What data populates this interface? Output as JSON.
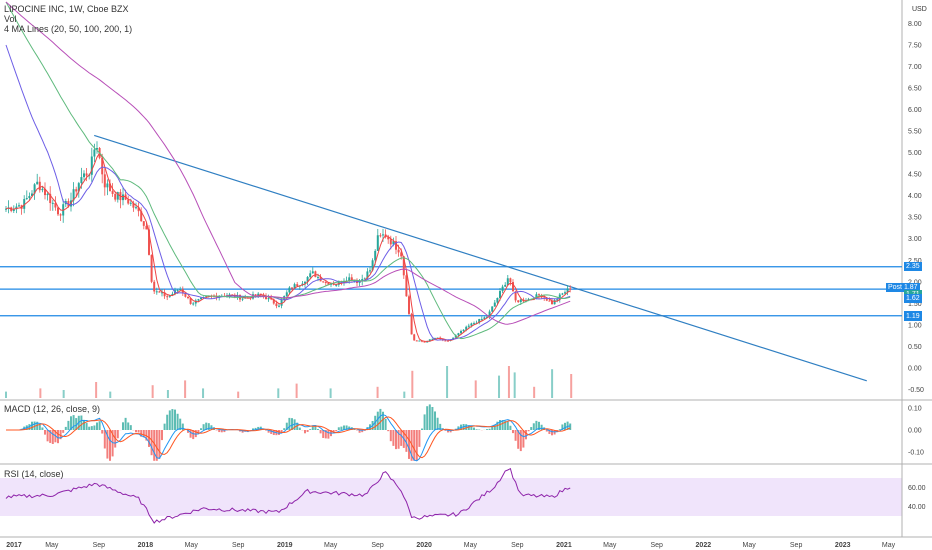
{
  "header": {
    "title": "LIPOCINE INC, 1W, Cboe BZX",
    "vol_label": "Vol",
    "ma_label": "4 MA Lines (20, 50, 100, 200, 1)",
    "macd_label": "MACD (12, 26, close, 9)",
    "rsi_label": "RSI (14, close)"
  },
  "currency": "USD",
  "colors": {
    "up": "#26a69a",
    "down": "#ef5350",
    "trend": "#2f7fc2",
    "hline": "#1e88e5",
    "ma20": "#ef4444",
    "ma50": "#6d5ee6",
    "ma100": "#5fba7d",
    "ma200": "#b84fb8",
    "rsi_band": "#f0e4fb",
    "rsi_line": "#8e24aa",
    "macd_line": "#2196f3",
    "signal_line": "#ff5722"
  },
  "price_axis": [
    "8.00",
    "7.50",
    "7.00",
    "6.50",
    "6.00",
    "5.50",
    "5.00",
    "4.50",
    "4.00",
    "3.50",
    "3.00",
    "2.50",
    "2.00",
    "1.50",
    "1.00",
    "0.50",
    "0.00",
    "-0.50"
  ],
  "macd_axis": [
    "0.10",
    "0.00",
    "-0.10"
  ],
  "rsi_axis": [
    "60.00",
    "40.00"
  ],
  "price_tags": [
    {
      "text": "2.35",
      "value": 2.35,
      "color": "#1e88e5"
    },
    {
      "text": "Post  1.87",
      "value": 1.87,
      "color": "#1e88e5"
    },
    {
      "text": "1.71",
      "value": 1.71,
      "color": "#26a69a"
    },
    {
      "text": "1.62",
      "value": 1.62,
      "color": "#1e88e5"
    },
    {
      "text": "1.21",
      "value": 1.21,
      "color": "#1e88e5"
    },
    {
      "text": "1.19",
      "value": 1.19,
      "color": "#1e88e5"
    }
  ],
  "time_labels": [
    "2017",
    "May",
    "Sep",
    "2018",
    "May",
    "Sep",
    "2019",
    "May",
    "Sep",
    "2020",
    "May",
    "Sep",
    "2021",
    "May",
    "Sep",
    "2022",
    "May",
    "Sep",
    "2023",
    "May"
  ],
  "horizontal_lines": [
    2.35,
    1.83,
    1.21
  ],
  "trendline": [
    {
      "x": "2017-08-20",
      "y": 5.4
    },
    {
      "x": "2023-03-05",
      "y": -0.3
    }
  ],
  "chart_data": {
    "type": "candlestick",
    "title": "LIPOCINE INC, 1W, Cboe BZX",
    "x_range": [
      "2017-01-01",
      "2023-05-31"
    ],
    "ylim": [
      -0.7,
      8.5
    ],
    "series": [
      {
        "name": "LIPOCINE INC",
        "kind": "ohlc",
        "points": [
          {
            "x": "2017-01-01",
            "close": 3.7
          },
          {
            "x": "2017-02-15",
            "close": 3.8
          },
          {
            "x": "2017-03-25",
            "close": 4.3
          },
          {
            "x": "2017-04-20",
            "close": 4.0
          },
          {
            "x": "2017-05-20",
            "close": 3.6
          },
          {
            "x": "2017-06-20",
            "close": 3.9
          },
          {
            "x": "2017-07-15",
            "close": 4.4
          },
          {
            "x": "2017-08-10",
            "close": 4.6
          },
          {
            "x": "2017-08-25",
            "close": 5.3
          },
          {
            "x": "2017-09-15",
            "close": 4.3
          },
          {
            "x": "2017-10-15",
            "close": 4.0
          },
          {
            "x": "2017-11-15",
            "close": 3.9
          },
          {
            "x": "2017-12-15",
            "close": 3.6
          },
          {
            "x": "2018-01-05",
            "close": 3.2
          },
          {
            "x": "2018-01-20",
            "close": 1.8
          },
          {
            "x": "2018-03-01",
            "close": 1.65
          },
          {
            "x": "2018-04-01",
            "close": 1.85
          },
          {
            "x": "2018-05-01",
            "close": 1.5
          },
          {
            "x": "2018-06-15",
            "close": 1.65
          },
          {
            "x": "2018-08-01",
            "close": 1.7
          },
          {
            "x": "2018-09-15",
            "close": 1.62
          },
          {
            "x": "2018-11-01",
            "close": 1.7
          },
          {
            "x": "2018-12-15",
            "close": 1.45
          },
          {
            "x": "2019-01-15",
            "close": 1.85
          },
          {
            "x": "2019-02-15",
            "close": 2.0
          },
          {
            "x": "2019-03-15",
            "close": 2.2
          },
          {
            "x": "2019-04-15",
            "close": 2.0
          },
          {
            "x": "2019-05-15",
            "close": 1.95
          },
          {
            "x": "2019-06-15",
            "close": 2.1
          },
          {
            "x": "2019-07-15",
            "close": 2.0
          },
          {
            "x": "2019-08-15",
            "close": 2.3
          },
          {
            "x": "2019-09-01",
            "close": 3.0
          },
          {
            "x": "2019-09-20",
            "close": 3.1
          },
          {
            "x": "2019-10-10",
            "close": 2.9
          },
          {
            "x": "2019-11-01",
            "close": 2.7
          },
          {
            "x": "2019-12-01",
            "close": 0.65
          },
          {
            "x": "2020-01-01",
            "close": 0.6
          },
          {
            "x": "2020-02-01",
            "close": 0.7
          },
          {
            "x": "2020-03-01",
            "close": 0.6
          },
          {
            "x": "2020-04-01",
            "close": 0.8
          },
          {
            "x": "2020-05-01",
            "close": 1.0
          },
          {
            "x": "2020-06-15",
            "close": 1.2
          },
          {
            "x": "2020-07-15",
            "close": 1.7
          },
          {
            "x": "2020-08-10",
            "close": 2.15
          },
          {
            "x": "2020-08-25",
            "close": 1.55
          },
          {
            "x": "2020-10-01",
            "close": 1.6
          },
          {
            "x": "2020-11-01",
            "close": 1.7
          },
          {
            "x": "2020-12-01",
            "close": 1.5
          },
          {
            "x": "2021-01-01",
            "close": 1.75
          },
          {
            "x": "2021-01-20",
            "close": 1.87
          }
        ]
      },
      {
        "name": "MA 20"
      },
      {
        "name": "MA 50"
      },
      {
        "name": "MA 100"
      },
      {
        "name": "MA 200"
      }
    ],
    "volume": [
      {
        "x": "2017-01-01",
        "v": 0.2
      },
      {
        "x": "2017-04-01",
        "v": 0.3
      },
      {
        "x": "2017-06-01",
        "v": 0.25
      },
      {
        "x": "2017-08-25",
        "v": 0.5
      },
      {
        "x": "2017-10-01",
        "v": 0.2
      },
      {
        "x": "2018-01-20",
        "v": 0.4
      },
      {
        "x": "2018-03-01",
        "v": 0.25
      },
      {
        "x": "2018-04-15",
        "v": 0.55
      },
      {
        "x": "2018-06-01",
        "v": 0.3
      },
      {
        "x": "2018-09-01",
        "v": 0.2
      },
      {
        "x": "2018-12-15",
        "v": 0.3
      },
      {
        "x": "2019-02-01",
        "v": 0.45
      },
      {
        "x": "2019-05-01",
        "v": 0.3
      },
      {
        "x": "2019-09-01",
        "v": 0.35
      },
      {
        "x": "2019-11-10",
        "v": 0.2
      },
      {
        "x": "2019-12-01",
        "v": 0.85
      },
      {
        "x": "2020-03-01",
        "v": 1.0
      },
      {
        "x": "2020-05-15",
        "v": 0.55
      },
      {
        "x": "2020-07-15",
        "v": 0.7
      },
      {
        "x": "2020-08-10",
        "v": 1.0
      },
      {
        "x": "2020-08-25",
        "v": 0.8
      },
      {
        "x": "2020-10-15",
        "v": 0.35
      },
      {
        "x": "2020-12-01",
        "v": 0.9
      },
      {
        "x": "2021-01-20",
        "v": 0.75
      }
    ],
    "rsi": [
      {
        "x": "2017-01-01",
        "y": 50
      },
      {
        "x": "2017-05-01",
        "y": 52
      },
      {
        "x": "2017-08-25",
        "y": 64
      },
      {
        "x": "2017-12-15",
        "y": 48
      },
      {
        "x": "2018-01-25",
        "y": 24
      },
      {
        "x": "2018-06-01",
        "y": 38
      },
      {
        "x": "2018-12-15",
        "y": 34
      },
      {
        "x": "2019-03-01",
        "y": 56
      },
      {
        "x": "2019-08-01",
        "y": 52
      },
      {
        "x": "2019-09-20",
        "y": 76
      },
      {
        "x": "2019-11-01",
        "y": 58
      },
      {
        "x": "2019-12-01",
        "y": 28
      },
      {
        "x": "2020-04-01",
        "y": 32
      },
      {
        "x": "2020-07-01",
        "y": 60
      },
      {
        "x": "2020-08-10",
        "y": 82
      },
      {
        "x": "2020-09-10",
        "y": 52
      },
      {
        "x": "2020-12-01",
        "y": 50
      },
      {
        "x": "2021-01-20",
        "y": 62
      }
    ]
  }
}
